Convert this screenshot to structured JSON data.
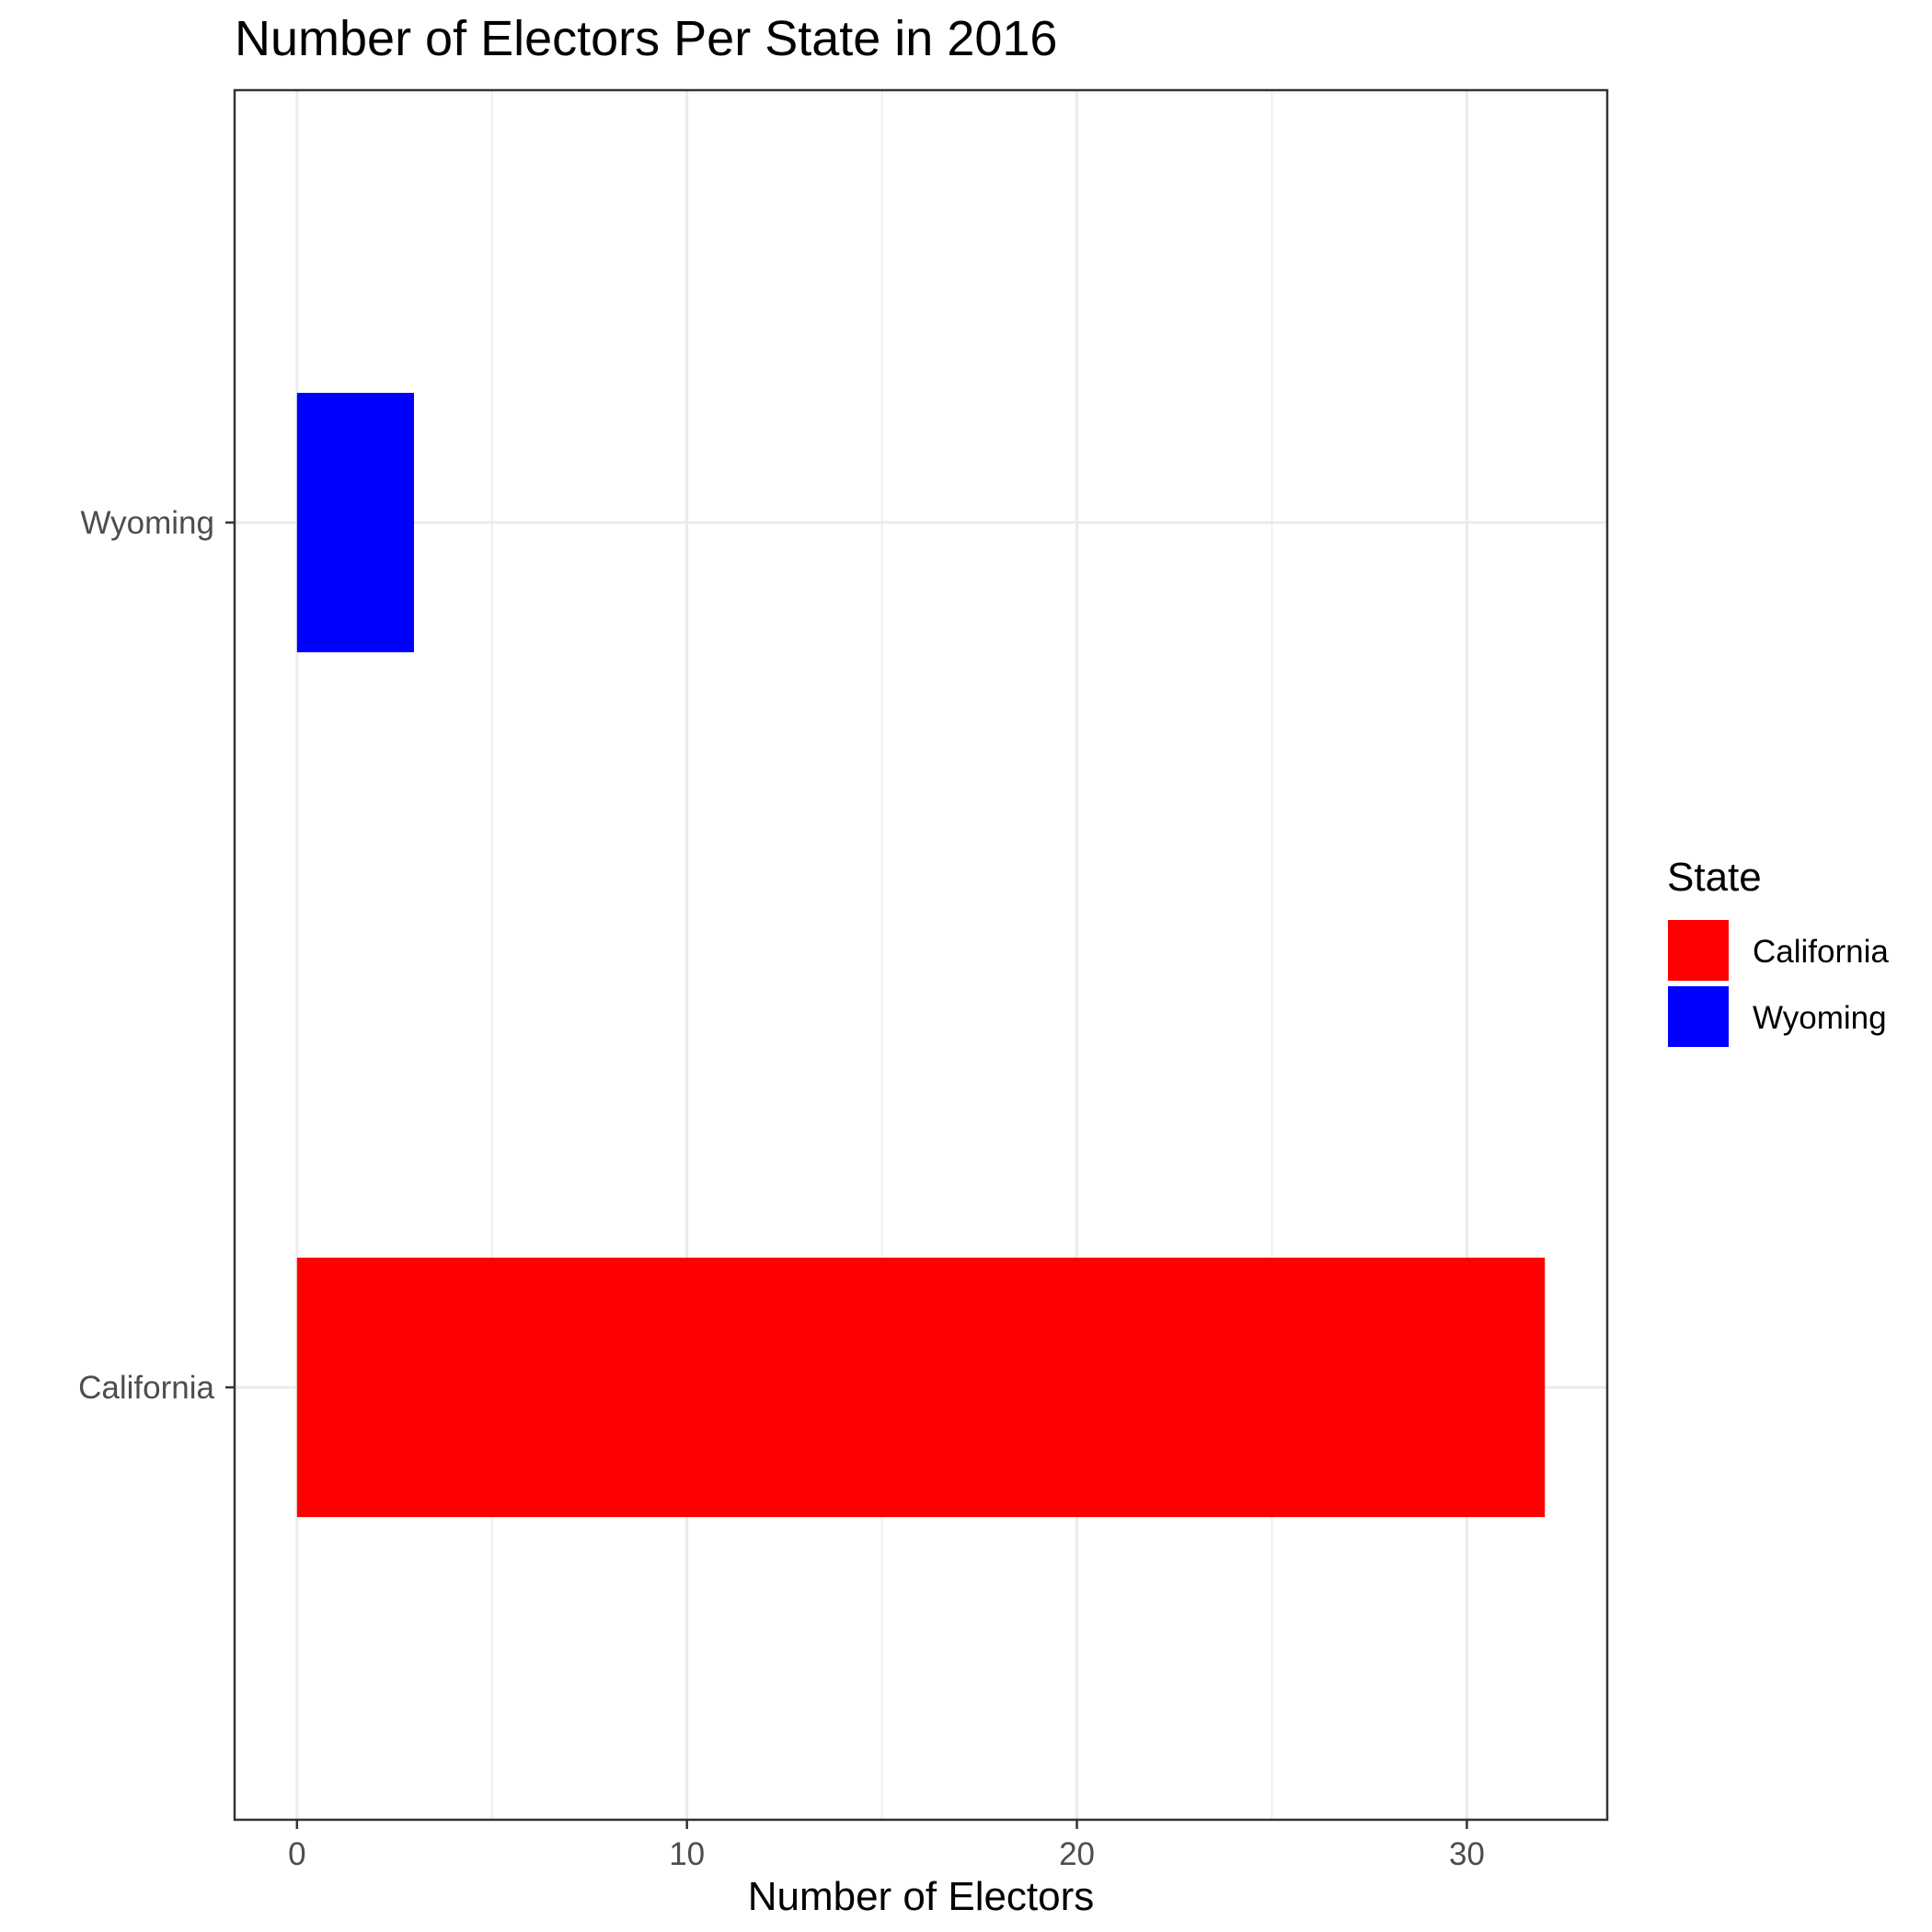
{
  "chart_data": {
    "type": "bar",
    "orientation": "horizontal",
    "title": "Number of Electors Per State in 2016",
    "xlabel": "Number of Electors",
    "ylabel": "",
    "categories": [
      "California",
      "Wyoming"
    ],
    "values": [
      32,
      3
    ],
    "colors": [
      "#ff0000",
      "#0000ff"
    ],
    "xlim": [
      -1.6,
      33.6
    ],
    "xticks": [
      0,
      10,
      20,
      30
    ],
    "grid": true,
    "legend": {
      "title": "State",
      "position": "right",
      "entries": [
        {
          "label": "California",
          "color": "#ff0000"
        },
        {
          "label": "Wyoming",
          "color": "#0000ff"
        }
      ]
    }
  }
}
